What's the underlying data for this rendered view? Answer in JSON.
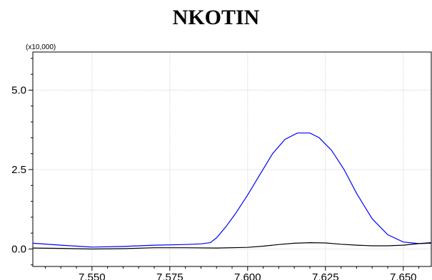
{
  "chart_data": {
    "type": "line",
    "title": "NKOTIN",
    "multiplier_label": "(x10,000)",
    "xlabel": "",
    "ylabel": "",
    "xlim": [
      7.531,
      7.659
    ],
    "ylim": [
      -0.55,
      6.2
    ],
    "x_ticks": [
      "7.550",
      "7.575",
      "7.600",
      "7.625",
      "7.650"
    ],
    "x_tick_values": [
      7.55,
      7.575,
      7.6,
      7.625,
      7.65
    ],
    "y_ticks": [
      "0.0",
      "2.5",
      "5.0"
    ],
    "y_tick_values": [
      0.0,
      2.5,
      5.0
    ],
    "grid": true,
    "series": [
      {
        "color": "#0000ff",
        "x": [
          7.531,
          7.54,
          7.55,
          7.56,
          7.57,
          7.58,
          7.585,
          7.588,
          7.59,
          7.593,
          7.596,
          7.6,
          7.604,
          7.608,
          7.612,
          7.616,
          7.62,
          7.623,
          7.627,
          7.631,
          7.635,
          7.64,
          7.645,
          7.65,
          7.655,
          7.659
        ],
        "y": [
          0.18,
          0.12,
          0.06,
          0.08,
          0.12,
          0.14,
          0.16,
          0.2,
          0.35,
          0.7,
          1.1,
          1.7,
          2.35,
          3.0,
          3.45,
          3.65,
          3.65,
          3.5,
          3.1,
          2.5,
          1.75,
          0.95,
          0.45,
          0.22,
          0.17,
          0.18
        ]
      },
      {
        "color": "#000000",
        "x": [
          7.531,
          7.54,
          7.55,
          7.56,
          7.57,
          7.58,
          7.59,
          7.6,
          7.605,
          7.61,
          7.615,
          7.62,
          7.625,
          7.63,
          7.635,
          7.64,
          7.645,
          7.65,
          7.655,
          7.659
        ],
        "y": [
          0.03,
          0.02,
          0.0,
          0.01,
          0.04,
          0.04,
          0.03,
          0.05,
          0.09,
          0.14,
          0.18,
          0.2,
          0.19,
          0.15,
          0.12,
          0.1,
          0.1,
          0.12,
          0.17,
          0.2
        ]
      }
    ]
  }
}
